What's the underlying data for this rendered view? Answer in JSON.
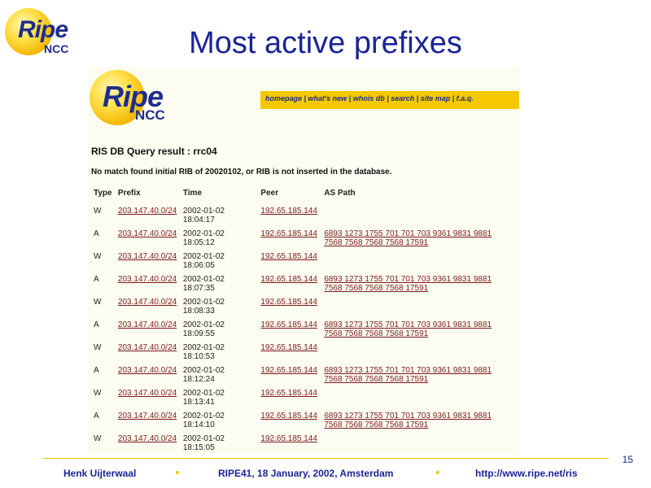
{
  "slide": {
    "title": "Most active prefixes",
    "page_number": "15"
  },
  "logo": {
    "ripe": "Ripe",
    "ncc": "NCC"
  },
  "screenshot": {
    "nav_links": "homepage | what's new | whois db | search | site map | f.a.q.",
    "query_title": "RIS DB Query result : rrc04",
    "message": "No match found initial RIB of 20020102, or RIB is not inserted in the database.",
    "columns": [
      "Type",
      "Prefix",
      "Time",
      "Peer",
      "AS Path"
    ],
    "rows": [
      {
        "type": "W",
        "prefix": "203.147.40.0/24",
        "date": "2002-01-02",
        "time": "18:04:17",
        "peer": "192.65.185.144",
        "path1": "",
        "path2": ""
      },
      {
        "type": "A",
        "prefix": "203.147.40.0/24",
        "date": "2002-01-02",
        "time": "18:05:12",
        "peer": "192.65.185.144",
        "path1": "6893 1273 1755 701 701 703 9361 9831 9881",
        "path2": "7568 7568 7568 7568 17591"
      },
      {
        "type": "W",
        "prefix": "203.147.40.0/24",
        "date": "2002-01-02",
        "time": "18:06:05",
        "peer": "192.65.185.144",
        "path1": "",
        "path2": ""
      },
      {
        "type": "A",
        "prefix": "203.147.40.0/24",
        "date": "2002-01-02",
        "time": "18:07:35",
        "peer": "192.65.185.144",
        "path1": "6893 1273 1755 701 701 703 9361 9831 9881",
        "path2": "7568 7568 7568 7568 17591"
      },
      {
        "type": "W",
        "prefix": "203.147.40.0/24",
        "date": "2002-01-02",
        "time": "18:08:33",
        "peer": "192.65.185.144",
        "path1": "",
        "path2": ""
      },
      {
        "type": "A",
        "prefix": "203.147.40.0/24",
        "date": "2002-01-02",
        "time": "18:09:55",
        "peer": "192.65.185.144",
        "path1": "6893 1273 1755 701 701 703 9361 9831 9881",
        "path2": "7568 7568 7568 7568 17591"
      },
      {
        "type": "W",
        "prefix": "203.147.40.0/24",
        "date": "2002-01-02",
        "time": "18:10:53",
        "peer": "192.65.185.144",
        "path1": "",
        "path2": ""
      },
      {
        "type": "A",
        "prefix": "203.147.40.0/24",
        "date": "2002-01-02",
        "time": "18:12:24",
        "peer": "192.65.185.144",
        "path1": "6893 1273 1755 701 701 703 9361 9831 9881",
        "path2": "7568 7568 7568 7568 17591"
      },
      {
        "type": "W",
        "prefix": "203.147.40.0/24",
        "date": "2002-01-02",
        "time": "18:13:41",
        "peer": "192.65.185.144",
        "path1": "",
        "path2": ""
      },
      {
        "type": "A",
        "prefix": "203.147.40.0/24",
        "date": "2002-01-02",
        "time": "18:14:10",
        "peer": "192.65.185.144",
        "path1": "6893 1273 1755 701 701 703 9361 9831 9881",
        "path2": "7568 7568 7568 7568 17591"
      },
      {
        "type": "W",
        "prefix": "203.147.40.0/24",
        "date": "2002-01-02",
        "time": "18:15:05",
        "peer": "192.65.185.144",
        "path1": "",
        "path2": ""
      }
    ]
  },
  "footer": {
    "author": "Henk Uijterwaal",
    "event": "RIPE41, 18 January, 2002, Amsterdam",
    "url": "http://www.ripe.net/ris"
  },
  "colors": {
    "title_blue": "#1a2596",
    "accent_yellow": "#f2c400",
    "link_red": "#7b1c1c"
  }
}
